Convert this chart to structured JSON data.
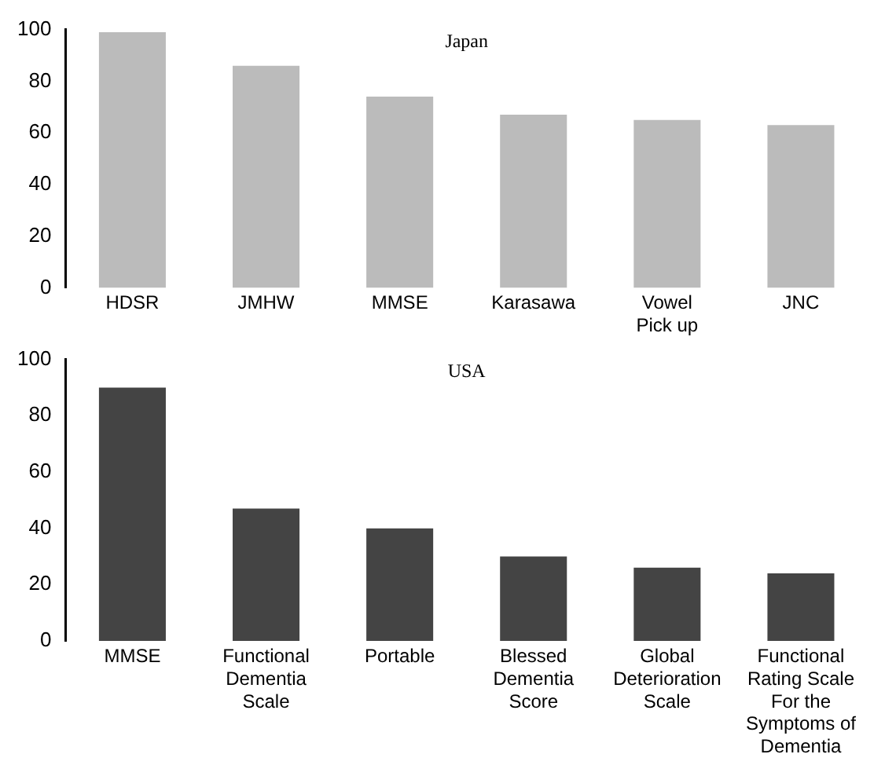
{
  "chart_data": [
    {
      "type": "bar",
      "title": "Japan",
      "categories": [
        "HDSR",
        "JMHW",
        "MMSE",
        "Karasawa",
        "Vowel Pick up",
        "JNC"
      ],
      "values": [
        99,
        86,
        74,
        67,
        65,
        63
      ],
      "color": "#bbbbbb",
      "ylim": [
        0,
        100
      ],
      "yticks": [
        0,
        20,
        40,
        60,
        80,
        100
      ],
      "grid": false,
      "legend": false
    },
    {
      "type": "bar",
      "title": "USA",
      "categories": [
        "MMSE",
        "Functional Dementia Scale",
        "Portable",
        "Blessed Dementia Score",
        "Global Deterioration Scale",
        "Functional Rating Scale For the Symptoms of Dementia"
      ],
      "values": [
        90,
        47,
        40,
        30,
        26,
        24
      ],
      "color": "#444444",
      "ylim": [
        0,
        100
      ],
      "yticks": [
        0,
        20,
        40,
        60,
        80,
        100
      ],
      "grid": false,
      "legend": false
    }
  ]
}
